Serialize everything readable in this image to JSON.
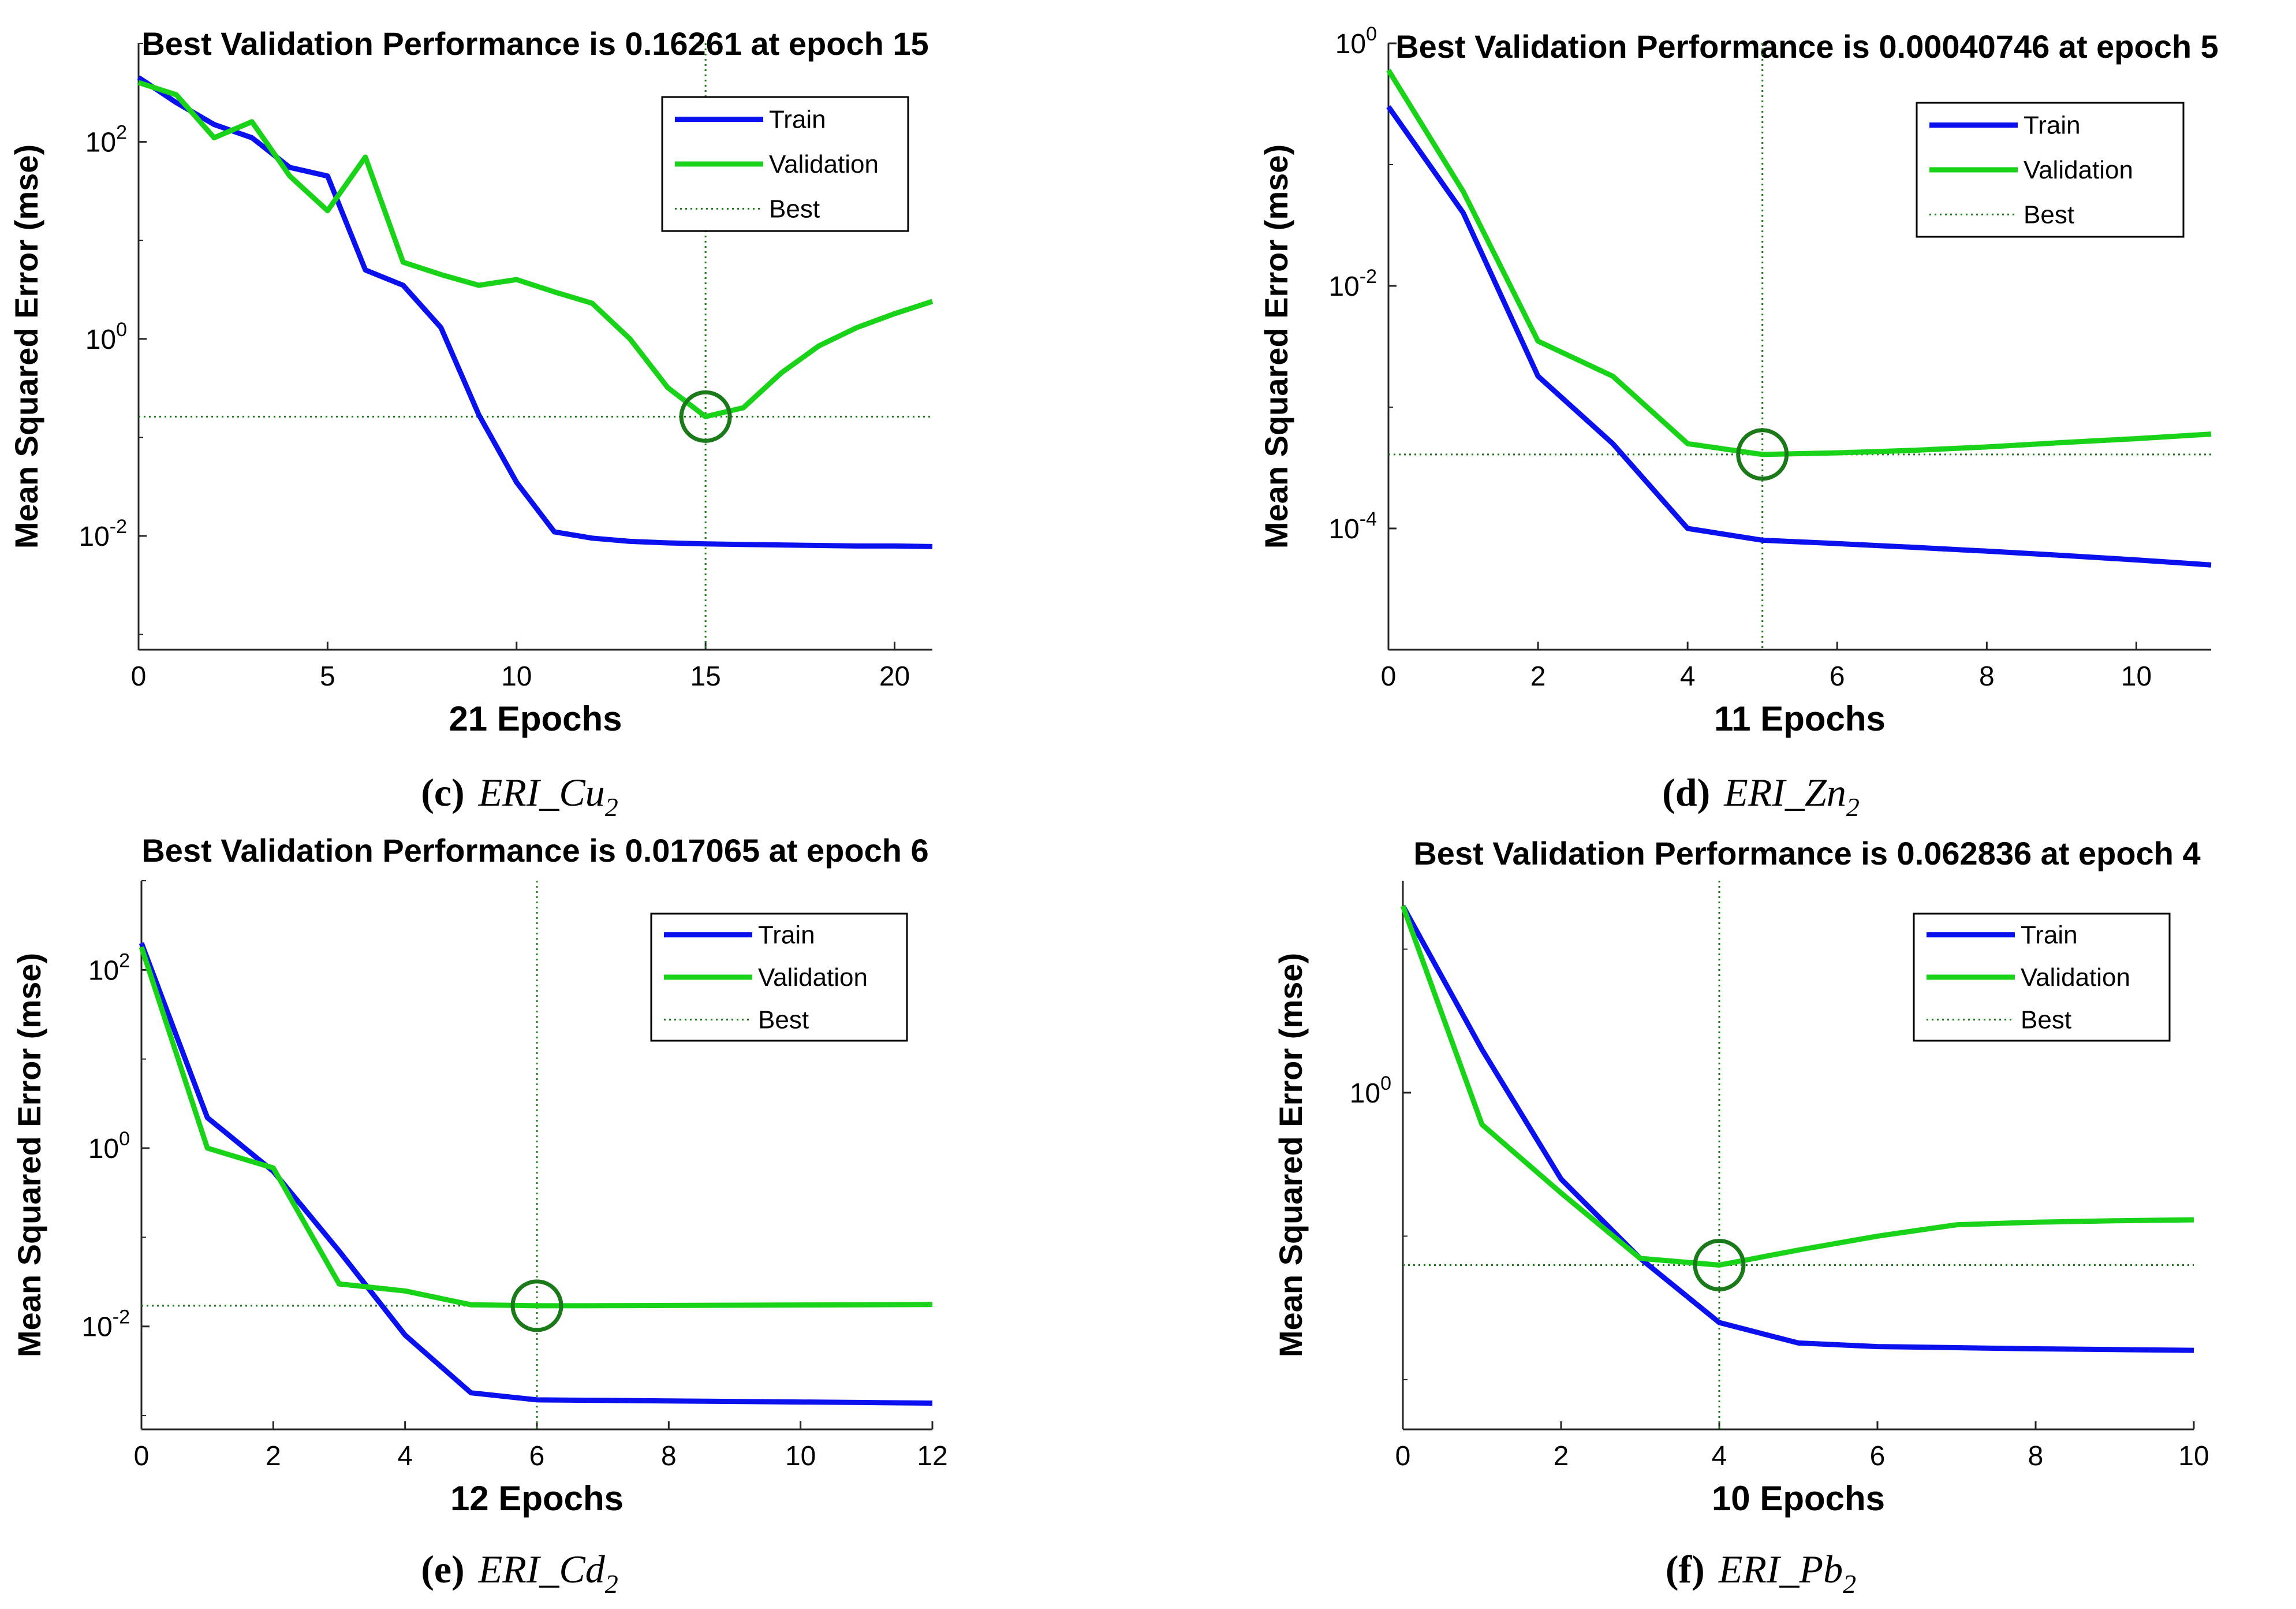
{
  "colors": {
    "train": "#0a10ee",
    "validation": "#19d319",
    "best": "#1a7a1a",
    "axis": "#262626"
  },
  "chart_data": [
    {
      "type": "line",
      "title": "Best Validation Performance is 0.16261 at epoch 15",
      "xlabel": "21 Epochs",
      "ylabel": "Mean Squared Error  (mse)",
      "yscale": "log",
      "xlim": [
        0,
        21
      ],
      "ylim": [
        0.0007,
        1000
      ],
      "xticks": [
        0,
        5,
        10,
        15,
        20
      ],
      "xtick_labels": [
        "0",
        "5",
        "10",
        "15",
        "20"
      ],
      "yticks": [
        0.01,
        1,
        100
      ],
      "ytick_base": [
        "10",
        "10",
        "10"
      ],
      "ytick_exp": [
        "-2",
        "0",
        "2"
      ],
      "legend": [
        "Train",
        "Validation",
        "Best"
      ],
      "legend_position": "top-right",
      "best": {
        "epoch": 15,
        "value": 0.16261
      },
      "series": [
        {
          "name": "Train",
          "x": [
            0,
            1,
            2,
            3,
            4,
            5,
            6,
            7,
            8,
            9,
            10,
            11,
            12,
            13,
            14,
            15,
            16,
            17,
            18,
            19,
            20,
            21
          ],
          "values": [
            450,
            250,
            150,
            110,
            55,
            45,
            5,
            3.5,
            1.3,
            0.17,
            0.035,
            0.011,
            0.0095,
            0.0088,
            0.0085,
            0.0083,
            0.0082,
            0.0081,
            0.008,
            0.0079,
            0.0079,
            0.0078
          ]
        },
        {
          "name": "Validation",
          "x": [
            0,
            1,
            2,
            3,
            4,
            5,
            6,
            7,
            8,
            9,
            10,
            11,
            12,
            13,
            14,
            15,
            16,
            17,
            18,
            19,
            20,
            21
          ],
          "values": [
            400,
            300,
            110,
            160,
            45,
            20,
            70,
            6,
            4.5,
            3.5,
            4,
            3,
            2.3,
            1,
            0.32,
            0.16261,
            0.2,
            0.45,
            0.85,
            1.3,
            1.8,
            2.4
          ]
        }
      ],
      "caption": {
        "letter": "(c)",
        "label": "ERI_Cu",
        "sub": "2"
      }
    },
    {
      "type": "line",
      "title": "Best Validation Performance is 0.00040746 at epoch 5",
      "xlabel": "11 Epochs",
      "ylabel": "Mean Squared Error  (mse)",
      "yscale": "log",
      "xlim": [
        0,
        11
      ],
      "ylim": [
        1e-05,
        1
      ],
      "xticks": [
        0,
        2,
        4,
        6,
        8,
        10
      ],
      "xtick_labels": [
        "0",
        "2",
        "4",
        "6",
        "8",
        "10"
      ],
      "yticks": [
        0.0001,
        0.01,
        1
      ],
      "ytick_base": [
        "10",
        "10",
        "10"
      ],
      "ytick_exp": [
        "-4",
        "-2",
        "0"
      ],
      "legend": [
        "Train",
        "Validation",
        "Best"
      ],
      "legend_position": "top-right",
      "best": {
        "epoch": 5,
        "value": 0.00040746
      },
      "series": [
        {
          "name": "Train",
          "x": [
            0,
            1,
            2,
            3,
            4,
            5,
            6,
            7,
            8,
            9,
            10,
            11
          ],
          "values": [
            0.3,
            0.04,
            0.0018,
            0.0005,
            0.0001,
            8e-05,
            7.5e-05,
            7e-05,
            6.5e-05,
            6e-05,
            5.5e-05,
            5e-05
          ]
        },
        {
          "name": "Validation",
          "x": [
            0,
            1,
            2,
            3,
            4,
            5,
            6,
            7,
            8,
            9,
            10,
            11
          ],
          "values": [
            0.6,
            0.06,
            0.0035,
            0.0018,
            0.0005,
            0.00040746,
            0.00042,
            0.00044,
            0.00047,
            0.00051,
            0.00055,
            0.0006
          ]
        }
      ],
      "caption": {
        "letter": "(d)",
        "label": "ERI_Zn",
        "sub": "2"
      }
    },
    {
      "type": "line",
      "title": "Best Validation Performance is 0.017065 at epoch 6",
      "xlabel": "12 Epochs",
      "ylabel": "Mean Squared Error  (mse)",
      "yscale": "log",
      "xlim": [
        0,
        12
      ],
      "ylim": [
        0.0007,
        1000
      ],
      "xticks": [
        0,
        2,
        4,
        6,
        8,
        10,
        12
      ],
      "xtick_labels": [
        "0",
        "2",
        "4",
        "6",
        "8",
        "10",
        "12"
      ],
      "yticks": [
        0.01,
        1,
        100
      ],
      "ytick_base": [
        "10",
        "10",
        "10"
      ],
      "ytick_exp": [
        "-2",
        "0",
        "2"
      ],
      "legend": [
        "Train",
        "Validation",
        "Best"
      ],
      "legend_position": "top-right",
      "best": {
        "epoch": 6,
        "value": 0.017065
      },
      "series": [
        {
          "name": "Train",
          "x": [
            0,
            1,
            2,
            3,
            4,
            5,
            6,
            7,
            8,
            9,
            10,
            11,
            12
          ],
          "values": [
            200,
            2.2,
            0.55,
            0.07,
            0.008,
            0.0018,
            0.0015,
            0.00148,
            0.00146,
            0.00144,
            0.00142,
            0.0014,
            0.00138
          ]
        },
        {
          "name": "Validation",
          "x": [
            0,
            1,
            2,
            3,
            4,
            5,
            6,
            7,
            8,
            9,
            10,
            11,
            12
          ],
          "values": [
            180,
            1,
            0.6,
            0.03,
            0.025,
            0.0175,
            0.017065,
            0.0171,
            0.0172,
            0.0173,
            0.0174,
            0.0175,
            0.0176
          ]
        }
      ],
      "caption": {
        "letter": "(e)",
        "label": "ERI_Cd",
        "sub": "2"
      }
    },
    {
      "type": "line",
      "title": "Best Validation Performance is 0.062836 at epoch 4",
      "xlabel": "10 Epochs",
      "ylabel": "Mean Squared Error  (mse)",
      "yscale": "log",
      "xlim": [
        0,
        10
      ],
      "ylim": [
        0.0045,
        30
      ],
      "xticks": [
        0,
        2,
        4,
        6,
        8,
        10
      ],
      "xtick_labels": [
        "0",
        "2",
        "4",
        "6",
        "8",
        "10"
      ],
      "yticks": [
        1
      ],
      "ytick_base": [
        "10"
      ],
      "ytick_exp": [
        "0"
      ],
      "legend": [
        "Train",
        "Validation",
        "Best"
      ],
      "legend_position": "top-right",
      "best": {
        "epoch": 4,
        "value": 0.062836
      },
      "series": [
        {
          "name": "Train",
          "x": [
            0,
            1,
            2,
            3,
            4,
            5,
            6,
            7,
            8,
            9,
            10
          ],
          "values": [
            20,
            2,
            0.25,
            0.07,
            0.025,
            0.018,
            0.017,
            0.0167,
            0.0164,
            0.0162,
            0.016
          ]
        },
        {
          "name": "Validation",
          "x": [
            0,
            1,
            2,
            3,
            4,
            5,
            6,
            7,
            8,
            9,
            10
          ],
          "values": [
            20,
            0.6,
            0.2,
            0.07,
            0.062836,
            0.08,
            0.1,
            0.12,
            0.125,
            0.128,
            0.13
          ]
        }
      ],
      "caption": {
        "letter": "(f)",
        "label": "ERI_Pb",
        "sub": "2"
      }
    }
  ]
}
